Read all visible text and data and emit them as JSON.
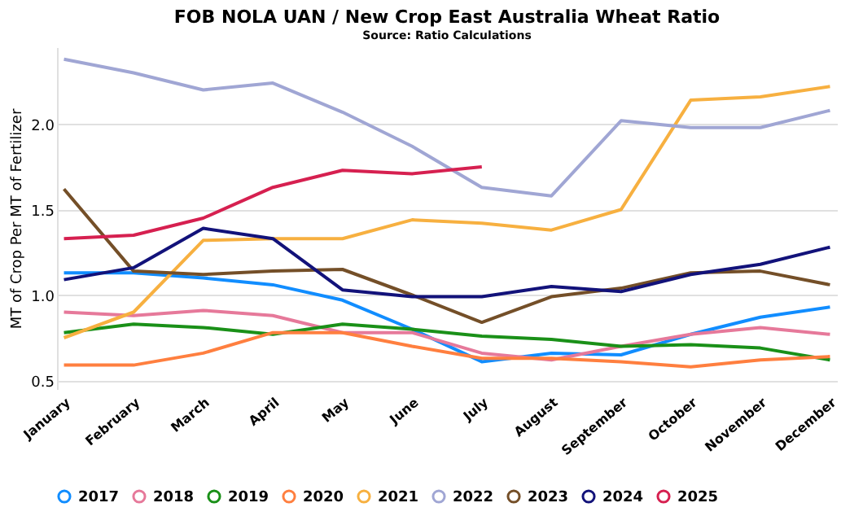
{
  "chart_data": {
    "type": "line",
    "title": "FOB NOLA UAN / New Crop East Australia Wheat Ratio",
    "subtitle": "Source: Ratio Calculations",
    "ylabel": "MT of Crop Per MT of Fertilizer",
    "categories": [
      "January",
      "February",
      "March",
      "April",
      "May",
      "June",
      "July",
      "August",
      "September",
      "October",
      "November",
      "December"
    ],
    "series": [
      {
        "name": "2017",
        "color": "#118dff",
        "values": [
          1.13,
          1.13,
          1.1,
          1.06,
          0.97,
          0.8,
          0.61,
          0.66,
          0.65,
          0.77,
          0.87,
          0.93
        ]
      },
      {
        "name": "2018",
        "color": "#e6799a",
        "values": [
          0.9,
          0.88,
          0.91,
          0.88,
          0.78,
          0.78,
          0.66,
          0.62,
          0.7,
          0.77,
          0.81,
          0.77
        ]
      },
      {
        "name": "2019",
        "color": "#1a9018",
        "values": [
          0.78,
          0.83,
          0.81,
          0.77,
          0.83,
          0.8,
          0.76,
          0.74,
          0.7,
          0.71,
          0.69,
          0.62
        ]
      },
      {
        "name": "2020",
        "color": "#ff7f3f",
        "values": [
          0.59,
          0.59,
          0.66,
          0.78,
          0.78,
          0.7,
          0.63,
          0.63,
          0.61,
          0.58,
          0.62,
          0.64
        ]
      },
      {
        "name": "2021",
        "color": "#f7b040",
        "values": [
          0.75,
          0.9,
          1.32,
          1.33,
          1.33,
          1.44,
          1.42,
          1.38,
          1.5,
          2.14,
          2.16,
          2.22
        ]
      },
      {
        "name": "2022",
        "color": "#a0a6d4",
        "values": [
          2.38,
          2.3,
          2.2,
          2.24,
          2.07,
          1.87,
          1.63,
          1.58,
          2.02,
          1.98,
          1.98,
          2.08
        ]
      },
      {
        "name": "2023",
        "color": "#744f28",
        "values": [
          1.62,
          1.14,
          1.12,
          1.14,
          1.15,
          1.0,
          0.84,
          0.99,
          1.04,
          1.13,
          1.14,
          1.06
        ]
      },
      {
        "name": "2024",
        "color": "#12127a",
        "values": [
          1.09,
          1.16,
          1.39,
          1.33,
          1.03,
          0.99,
          0.99,
          1.05,
          1.02,
          1.12,
          1.18,
          1.28
        ]
      },
      {
        "name": "2025",
        "color": "#d62050",
        "values": [
          1.33,
          1.35,
          1.45,
          1.63,
          1.73,
          1.71,
          1.75,
          null,
          null,
          null,
          null,
          null
        ]
      }
    ],
    "ylim": [
      0.45,
      2.45
    ],
    "yticks": [
      0.5,
      {
        "value": 1,
        "label": "1.0"
      },
      1.5,
      {
        "value": 2,
        "label": "2.0"
      }
    ],
    "grid": "y",
    "legend": "bottom",
    "marker": "none",
    "line_style": "solid"
  }
}
